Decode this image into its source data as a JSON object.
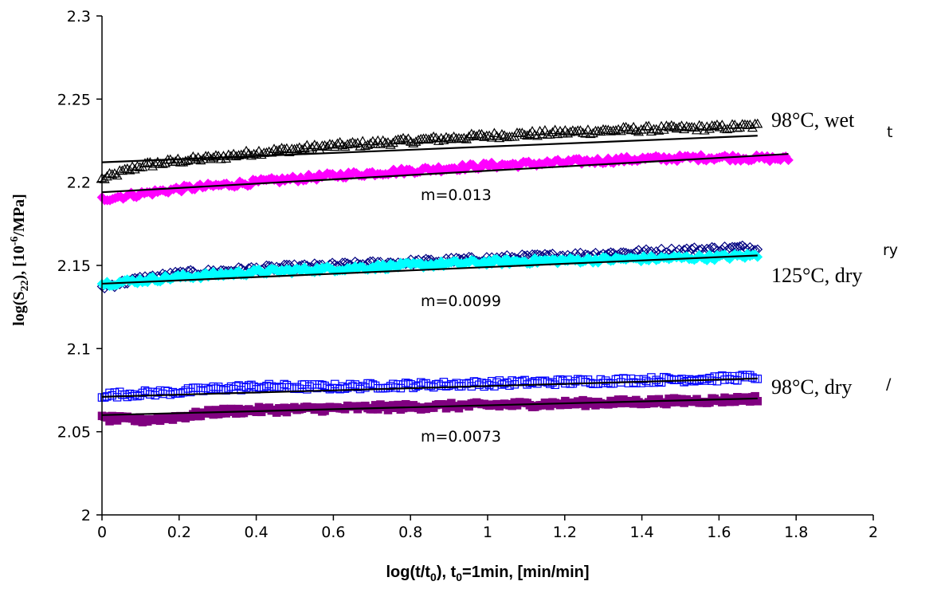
{
  "chart_data": {
    "type": "scatter",
    "title": "",
    "xlabel_main": "log(t/t",
    "xlabel_sub": "0",
    "xlabel_rest": "), t",
    "xlabel_sub2": "0",
    "xlabel_end": "=1min, [min/min]",
    "ylabel_a": "log(S",
    "ylabel_sub": "22",
    "ylabel_b": "), [10",
    "ylabel_sup": "-6",
    "ylabel_c": "/MPa]",
    "xlim": [
      0,
      2
    ],
    "ylim": [
      2,
      2.3
    ],
    "x_ticks": [
      "0",
      "0.2",
      "0.4",
      "0.6",
      "0.8",
      "1",
      "1.2",
      "1.4",
      "1.6",
      "1.8",
      "2"
    ],
    "y_ticks": [
      "2",
      "2.05",
      "2.1",
      "2.15",
      "2.2",
      "2.25",
      "2.3"
    ],
    "grid": false,
    "group_labels": [
      "98°C, wet",
      "125°C, dry",
      "98°C, dry"
    ],
    "clipped_legend_fragments": [
      "t",
      "ry",
      "/"
    ],
    "slope_annotations": [
      "m=0.013",
      "m=0.0099",
      "m=0.0073"
    ],
    "series": [
      {
        "color": "#000000",
        "marker": "triangle-open",
        "x_range": [
          0,
          1.7
        ],
        "values": [
          [
            0,
            2.202
          ],
          [
            0.1,
            2.21
          ],
          [
            0.2,
            2.213
          ],
          [
            0.3,
            2.215
          ],
          [
            0.4,
            2.218
          ],
          [
            0.6,
            2.222
          ],
          [
            0.8,
            2.225
          ],
          [
            1.0,
            2.228
          ],
          [
            1.2,
            2.23
          ],
          [
            1.4,
            2.232
          ],
          [
            1.6,
            2.233
          ],
          [
            1.7,
            2.234
          ]
        ]
      },
      {
        "color": "#ff00ff",
        "marker": "diamond",
        "x_range": [
          0,
          1.78
        ],
        "values": [
          [
            0,
            2.19
          ],
          [
            0.1,
            2.193
          ],
          [
            0.2,
            2.196
          ],
          [
            0.4,
            2.2
          ],
          [
            0.6,
            2.204
          ],
          [
            0.8,
            2.207
          ],
          [
            1.0,
            2.21
          ],
          [
            1.2,
            2.212
          ],
          [
            1.4,
            2.214
          ],
          [
            1.6,
            2.215
          ],
          [
            1.78,
            2.214
          ]
        ]
      },
      {
        "color": "#000080",
        "marker": "diamond-open",
        "x_range": [
          0,
          1.7
        ],
        "values": [
          [
            0,
            2.137
          ],
          [
            0.1,
            2.142
          ],
          [
            0.2,
            2.145
          ],
          [
            0.4,
            2.148
          ],
          [
            0.6,
            2.15
          ],
          [
            0.8,
            2.152
          ],
          [
            1.0,
            2.154
          ],
          [
            1.2,
            2.156
          ],
          [
            1.4,
            2.158
          ],
          [
            1.6,
            2.16
          ],
          [
            1.7,
            2.161
          ]
        ]
      },
      {
        "color": "#00ffff",
        "marker": "diamond",
        "x_range": [
          0,
          1.7
        ],
        "values": [
          [
            0,
            2.139
          ],
          [
            0.1,
            2.141
          ],
          [
            0.2,
            2.143
          ],
          [
            0.4,
            2.146
          ],
          [
            0.6,
            2.148
          ],
          [
            0.8,
            2.15
          ],
          [
            1.0,
            2.152
          ],
          [
            1.2,
            2.153
          ],
          [
            1.4,
            2.154
          ],
          [
            1.6,
            2.155
          ],
          [
            1.7,
            2.156
          ]
        ]
      },
      {
        "color": "#0000ff",
        "marker": "square-open",
        "x_range": [
          0,
          1.7
        ],
        "values": [
          [
            0,
            2.072
          ],
          [
            0.1,
            2.073
          ],
          [
            0.2,
            2.074
          ],
          [
            0.3,
            2.076
          ],
          [
            0.4,
            2.077
          ],
          [
            0.6,
            2.077
          ],
          [
            0.8,
            2.078
          ],
          [
            1.0,
            2.079
          ],
          [
            1.2,
            2.08
          ],
          [
            1.4,
            2.081
          ],
          [
            1.6,
            2.082
          ],
          [
            1.7,
            2.083
          ]
        ]
      },
      {
        "color": "#800080",
        "marker": "square",
        "x_range": [
          0,
          1.7
        ],
        "values": [
          [
            0,
            2.058
          ],
          [
            0.1,
            2.057
          ],
          [
            0.2,
            2.059
          ],
          [
            0.3,
            2.062
          ],
          [
            0.4,
            2.063
          ],
          [
            0.6,
            2.064
          ],
          [
            0.8,
            2.065
          ],
          [
            1.0,
            2.066
          ],
          [
            1.2,
            2.067
          ],
          [
            1.4,
            2.068
          ],
          [
            1.6,
            2.069
          ],
          [
            1.7,
            2.07
          ]
        ]
      }
    ],
    "fit_lines": [
      {
        "color": "#000000",
        "x": [
          0,
          1.7
        ],
        "y": [
          2.212,
          2.228
        ]
      },
      {
        "color": "#000000",
        "x": [
          0,
          1.78
        ],
        "y": [
          2.194,
          2.217
        ]
      },
      {
        "color": "#000000",
        "x": [
          0,
          1.7
        ],
        "y": [
          2.139,
          2.156
        ]
      },
      {
        "color": "#000000",
        "x": [
          0,
          1.7
        ],
        "y": [
          2.071,
          2.082
        ]
      },
      {
        "color": "#000000",
        "x": [
          0,
          1.7
        ],
        "y": [
          2.06,
          2.07
        ]
      }
    ]
  }
}
